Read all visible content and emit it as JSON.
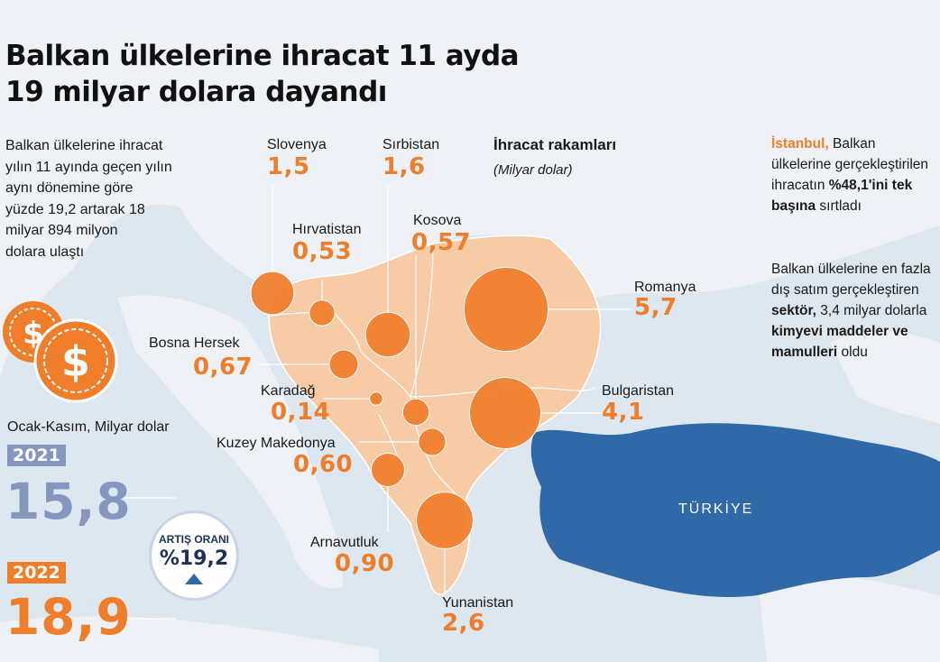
{
  "title_line1": "Balkan ülkelerine ihracat 11 ayda",
  "title_line2": "19 milyar dolara dayandı",
  "intro_lines": [
    "Balkan ülkelerine ihracat",
    "yılın 11 ayında geçen yılın",
    "aynı dönemine göre",
    "yüzde 19,2 artarak 18",
    "milyar 894 milyon",
    "dolara ulaştı"
  ],
  "legend": {
    "title": "İhracat rakamları",
    "unit": "(Milyar dolar)"
  },
  "note1": {
    "highlight": "İstanbul,",
    "text_a": " Balkan ülkelerine gerçekleştirilen ihracatın ",
    "bold_a": "%48,1'ini tek başına",
    "text_b": " sırtladı"
  },
  "note2": {
    "text_a": "Balkan ülkelerine en fazla dış satım gerçekleştiren ",
    "bold_a": "sektör,",
    "text_b": " 3,4 milyar dolarla ",
    "bold_b": "kimyevi maddeler ve mamulleri",
    "text_c": " oldu"
  },
  "countries": [
    {
      "name": "Slovenya",
      "value": "1,5",
      "value_num": 1.5
    },
    {
      "name": "Sırbistan",
      "value": "1,6",
      "value_num": 1.6
    },
    {
      "name": "Hırvatistan",
      "value": "0,53",
      "value_num": 0.53
    },
    {
      "name": "Kosova",
      "value": "0,57",
      "value_num": 0.57
    },
    {
      "name": "Romanya",
      "value": "5,7",
      "value_num": 5.7
    },
    {
      "name": "Bosna Hersek",
      "value": "0,67",
      "value_num": 0.67
    },
    {
      "name": "Karadağ",
      "value": "0,14",
      "value_num": 0.14
    },
    {
      "name": "Bulgaristan",
      "value": "4,1",
      "value_num": 4.1
    },
    {
      "name": "Kuzey Makedonya",
      "value": "0,60",
      "value_num": 0.6
    },
    {
      "name": "Arnavutluk",
      "value": "0,90",
      "value_num": 0.9
    },
    {
      "name": "Yunanistan",
      "value": "2,6",
      "value_num": 2.6
    }
  ],
  "totals": {
    "period_label": "Ocak-Kasım, Milyar dolar",
    "year_2021": "2021",
    "value_2021": "15,8",
    "year_2022": "2022",
    "value_2022": "18,9",
    "growth_label": "ARTIŞ ORANI",
    "growth_value": "%19,2"
  },
  "map_label_turkey": "TÜRKİYE",
  "colors": {
    "accent_orange": "#ef7d2a",
    "balkan_fill": "#f8cba7",
    "turkey_blue": "#2f69a8",
    "badge_2021": "#8597be",
    "sea": "#dde7f0",
    "land": "#eef2f6"
  }
}
